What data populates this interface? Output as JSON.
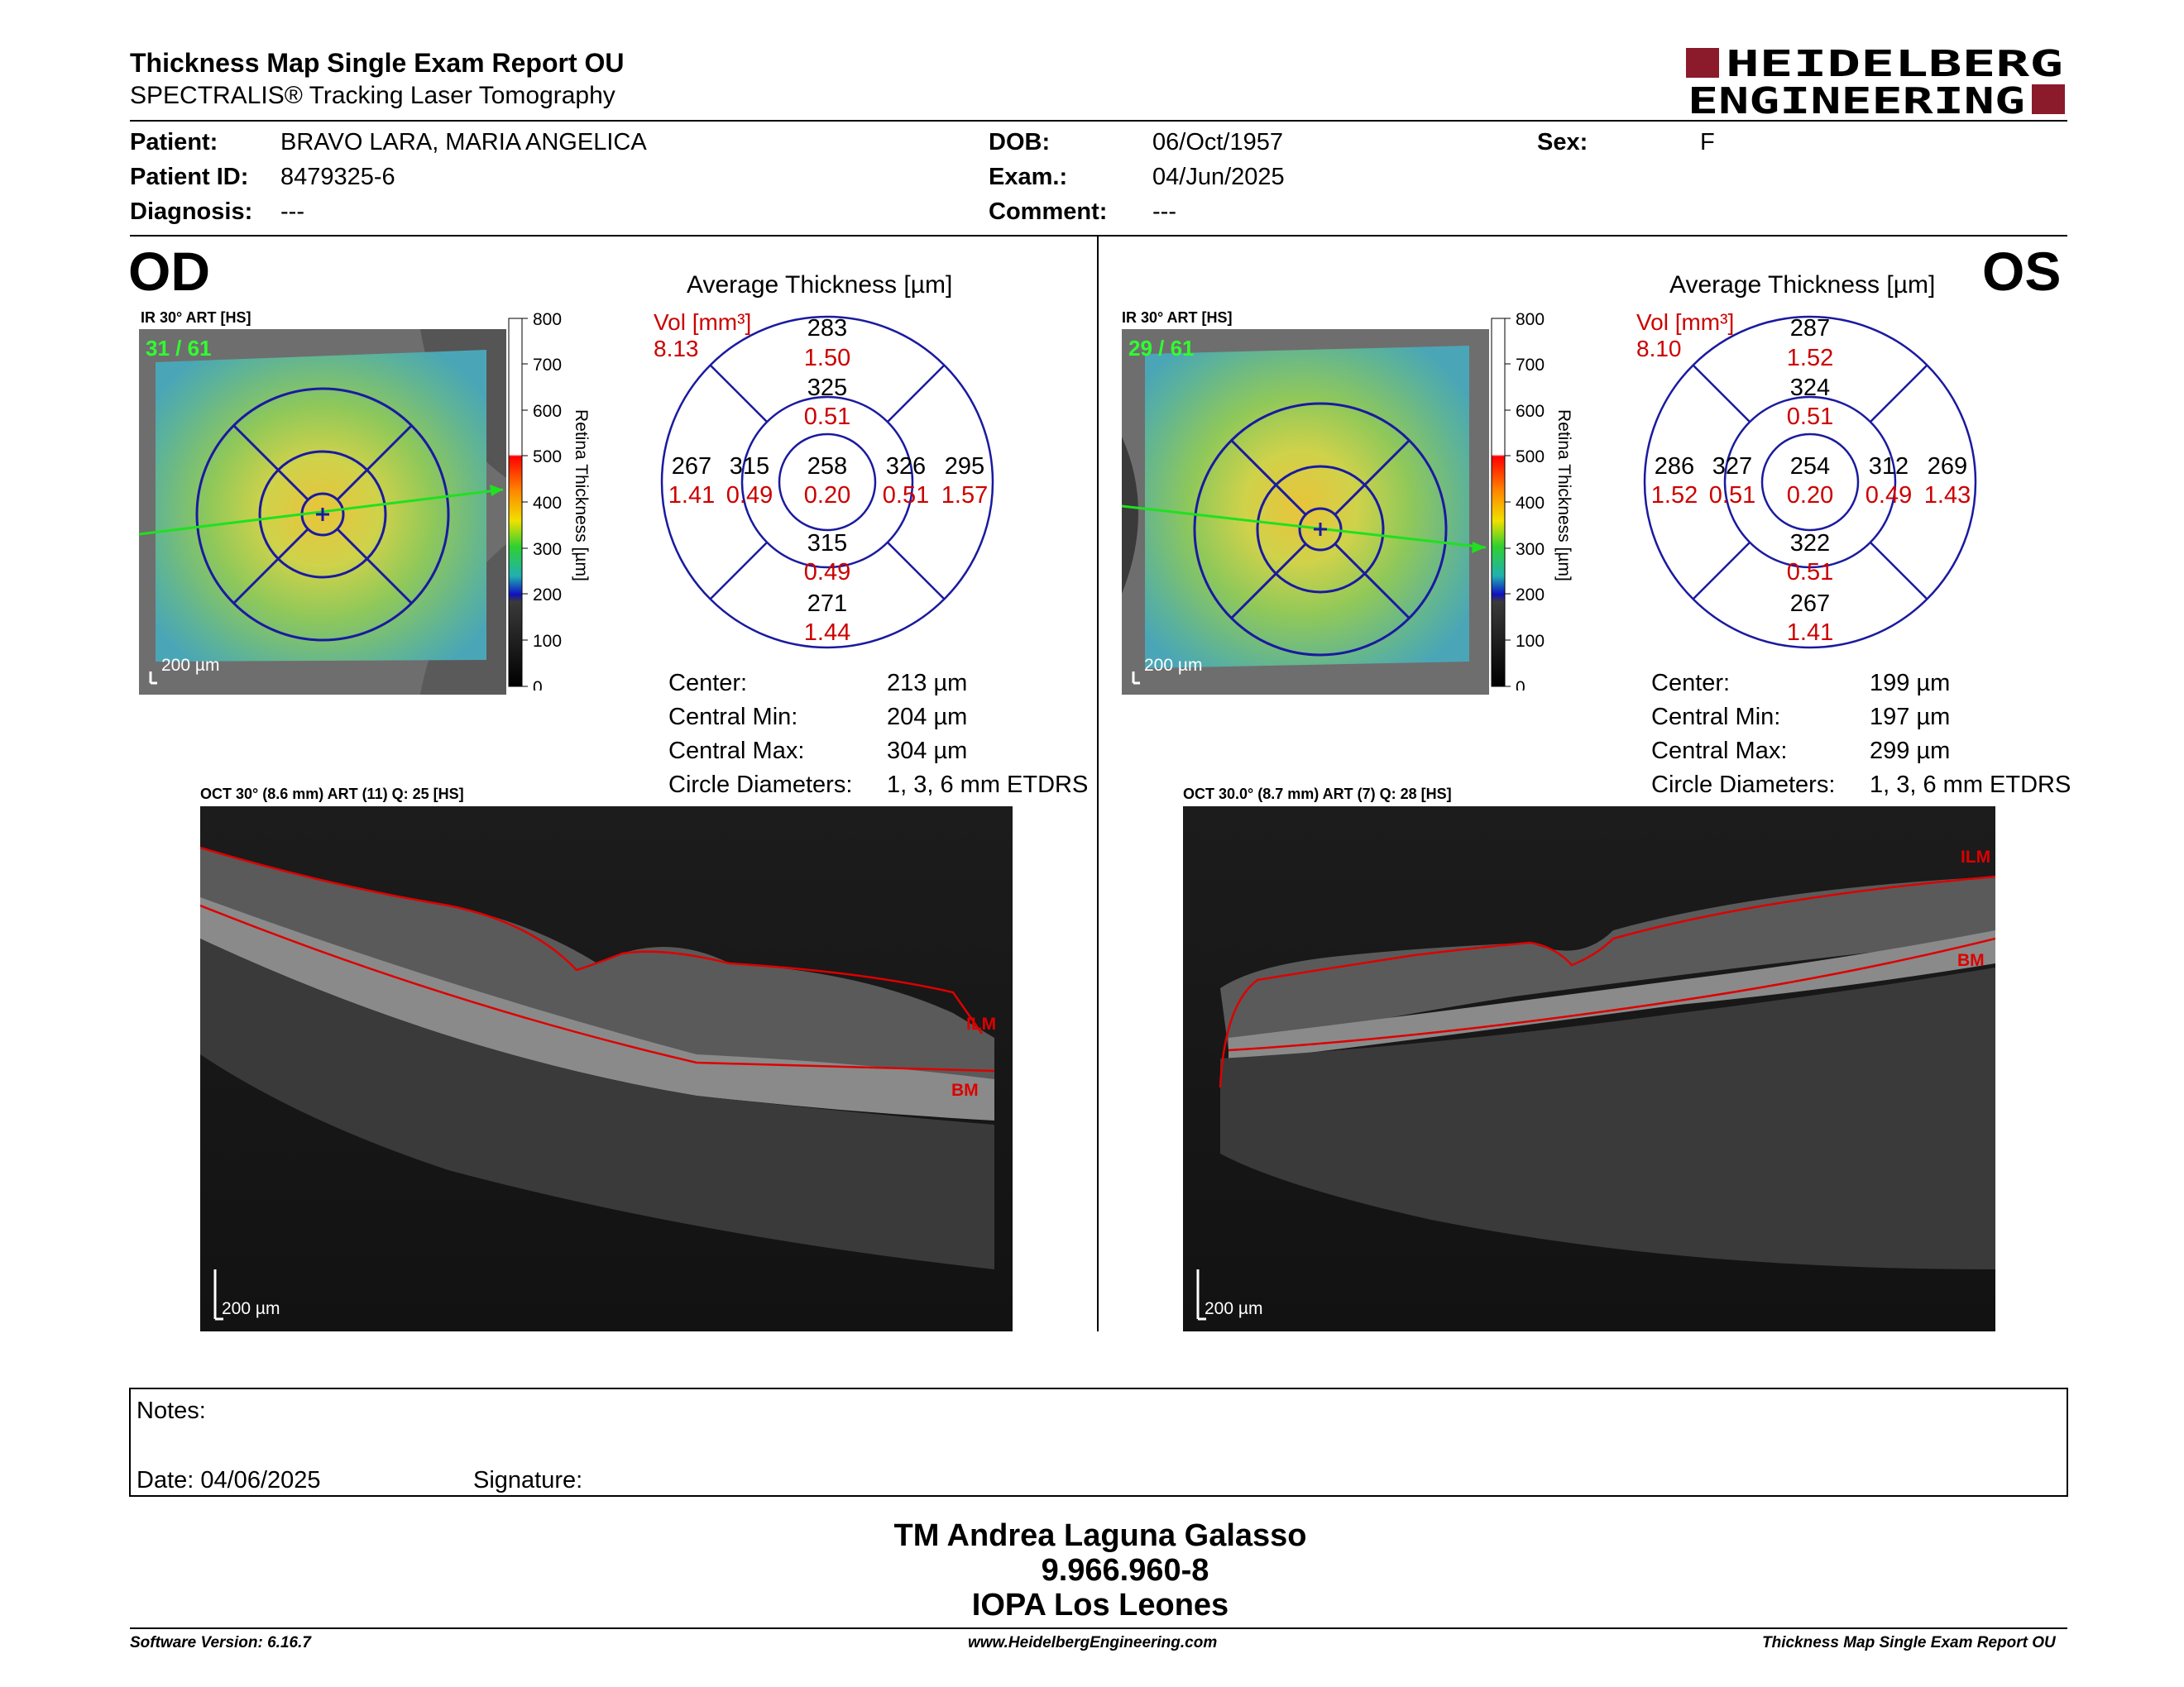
{
  "header": {
    "title": "Thickness Map Single Exam Report OU",
    "subtitle": "SPECTRALIS® Tracking Laser Tomography",
    "logo_line1": "HEIDELBERG",
    "logo_line2": "ENGINEERING"
  },
  "patient": {
    "name_label": "Patient:",
    "name": "BRAVO LARA, MARIA ANGELICA",
    "id_label": "Patient ID:",
    "id": "8479325-6",
    "diagnosis_label": "Diagnosis:",
    "diagnosis": "---",
    "dob_label": "DOB:",
    "dob": "06/Oct/1957",
    "exam_label": "Exam.:",
    "exam": "04/Jun/2025",
    "comment_label": "Comment:",
    "comment": "---",
    "sex_label": "Sex:",
    "sex": "F"
  },
  "colors": {
    "accent_red": "#cc0000",
    "logo_red": "#8b1a2b",
    "ring_blue": "#1a1aa0"
  },
  "scale": {
    "ticks": [
      "800",
      "700",
      "600",
      "500",
      "400",
      "300",
      "200",
      "100",
      "0"
    ],
    "label": "Retina  Thickness [µm]"
  },
  "od": {
    "eye": "OD",
    "ir_label": "IR 30° ART [HS]",
    "frame": "31 / 61",
    "scale_bar": "200 µm",
    "avg_title": "Average Thickness [µm]",
    "vol_label": "Vol [mm³]",
    "vol_total": "8.13",
    "grid": {
      "center": {
        "thk": "258",
        "vol": "0.20"
      },
      "inner_sup": {
        "thk": "325",
        "vol": "0.51"
      },
      "inner_inf": {
        "thk": "315",
        "vol": "0.49"
      },
      "inner_left": {
        "thk": "315",
        "vol": "0.49"
      },
      "inner_right": {
        "thk": "326",
        "vol": "0.51"
      },
      "outer_sup": {
        "thk": "283",
        "vol": "1.50"
      },
      "outer_inf": {
        "thk": "271",
        "vol": "1.44"
      },
      "outer_left": {
        "thk": "267",
        "vol": "1.41"
      },
      "outer_right": {
        "thk": "295",
        "vol": "1.57"
      }
    },
    "stats": {
      "center_label": "Center:",
      "center": "213 µm",
      "min_label": "Central Min:",
      "min": "204 µm",
      "max_label": "Central Max:",
      "max": "304 µm",
      "diam_label": "Circle Diameters:",
      "diam": "1, 3, 6 mm ETDRS"
    },
    "oct_label": "OCT 30° (8.6 mm) ART (11) Q: 25 [HS]",
    "ilm": "ILM",
    "bm": "BM",
    "oct_scale": "200 µm"
  },
  "os": {
    "eye": "OS",
    "ir_label": "IR 30° ART [HS]",
    "frame": "29 / 61",
    "scale_bar": "200 µm",
    "avg_title": "Average Thickness [µm]",
    "vol_label": "Vol [mm³]",
    "vol_total": "8.10",
    "grid": {
      "center": {
        "thk": "254",
        "vol": "0.20"
      },
      "inner_sup": {
        "thk": "324",
        "vol": "0.51"
      },
      "inner_inf": {
        "thk": "322",
        "vol": "0.51"
      },
      "inner_left": {
        "thk": "327",
        "vol": "0.51"
      },
      "inner_right": {
        "thk": "312",
        "vol": "0.49"
      },
      "outer_sup": {
        "thk": "287",
        "vol": "1.52"
      },
      "outer_inf": {
        "thk": "267",
        "vol": "1.41"
      },
      "outer_left": {
        "thk": "286",
        "vol": "1.52"
      },
      "outer_right": {
        "thk": "269",
        "vol": "1.43"
      }
    },
    "stats": {
      "center_label": "Center:",
      "center": "199 µm",
      "min_label": "Central Min:",
      "min": "197 µm",
      "max_label": "Central Max:",
      "max": "299 µm",
      "diam_label": "Circle Diameters:",
      "diam": "1, 3, 6 mm ETDRS"
    },
    "oct_label": "OCT 30.0° (8.7 mm) ART (7) Q: 28 [HS]",
    "ilm": "ILM",
    "bm": "BM",
    "oct_scale": "200 µm"
  },
  "notes": {
    "label": "Notes:",
    "date": "Date: 04/06/2025",
    "signature_label": "Signature:"
  },
  "signature": {
    "line1": "TM Andrea Laguna Galasso",
    "line2": "9.966.960-8",
    "line3": "IOPA Los Leones"
  },
  "footer": {
    "software": "Software Version: 6.16.7",
    "url": "www.HeidelbergEngineering.com",
    "report": "Thickness Map Single Exam Report OU"
  }
}
